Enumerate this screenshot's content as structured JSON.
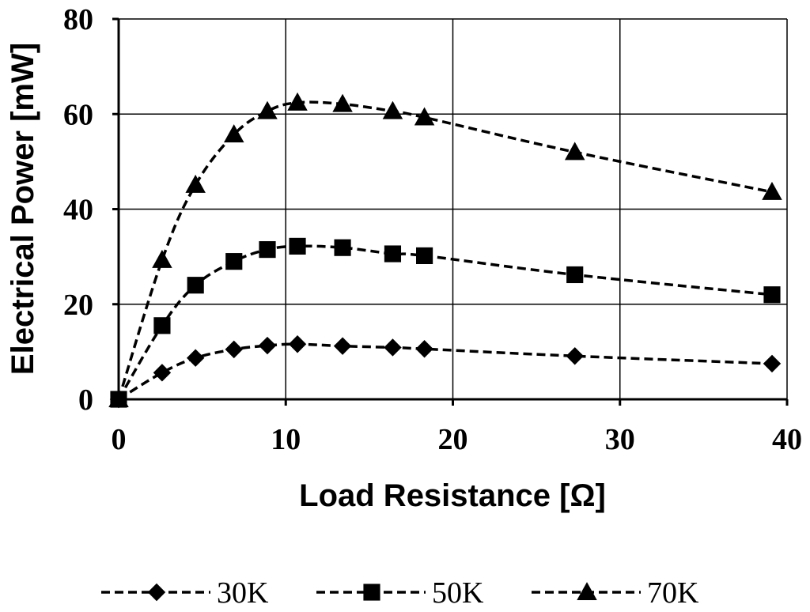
{
  "chart_data": {
    "type": "line",
    "xlabel": "Load Resistance [Ω]",
    "ylabel": "Electrical Power [mW]",
    "xlim": [
      0,
      40
    ],
    "ylim": [
      0,
      80
    ],
    "x_ticks": [
      "0",
      "10",
      "20",
      "30",
      "40"
    ],
    "y_ticks": [
      "0",
      "20",
      "40",
      "60",
      "80"
    ],
    "grid": true,
    "legend_position": "bottom",
    "line_style": "dashed",
    "line_color": "#000000",
    "series": [
      {
        "name": "30K",
        "marker": "diamond",
        "x": [
          0,
          2.6,
          4.6,
          6.9,
          8.9,
          10.7,
          13.4,
          16.4,
          18.3,
          27.3,
          39.1
        ],
        "y": [
          0,
          5.6,
          8.7,
          10.5,
          11.3,
          11.6,
          11.2,
          10.9,
          10.6,
          9.1,
          7.5
        ]
      },
      {
        "name": "50K",
        "marker": "square",
        "x": [
          0,
          2.6,
          4.6,
          6.9,
          8.9,
          10.7,
          13.4,
          16.4,
          18.3,
          27.3,
          39.1
        ],
        "y": [
          0,
          15.5,
          24,
          29,
          31.5,
          32.2,
          31.9,
          30.6,
          30.2,
          26.2,
          22
        ]
      },
      {
        "name": "70K",
        "marker": "triangle",
        "x": [
          0,
          2.6,
          4.6,
          6.9,
          8.9,
          10.7,
          13.4,
          16.4,
          18.3,
          27.3,
          39.1
        ],
        "y": [
          0,
          29.3,
          45.1,
          55.7,
          60.6,
          62.4,
          62.1,
          60.6,
          59.3,
          52,
          43.6
        ]
      }
    ]
  }
}
